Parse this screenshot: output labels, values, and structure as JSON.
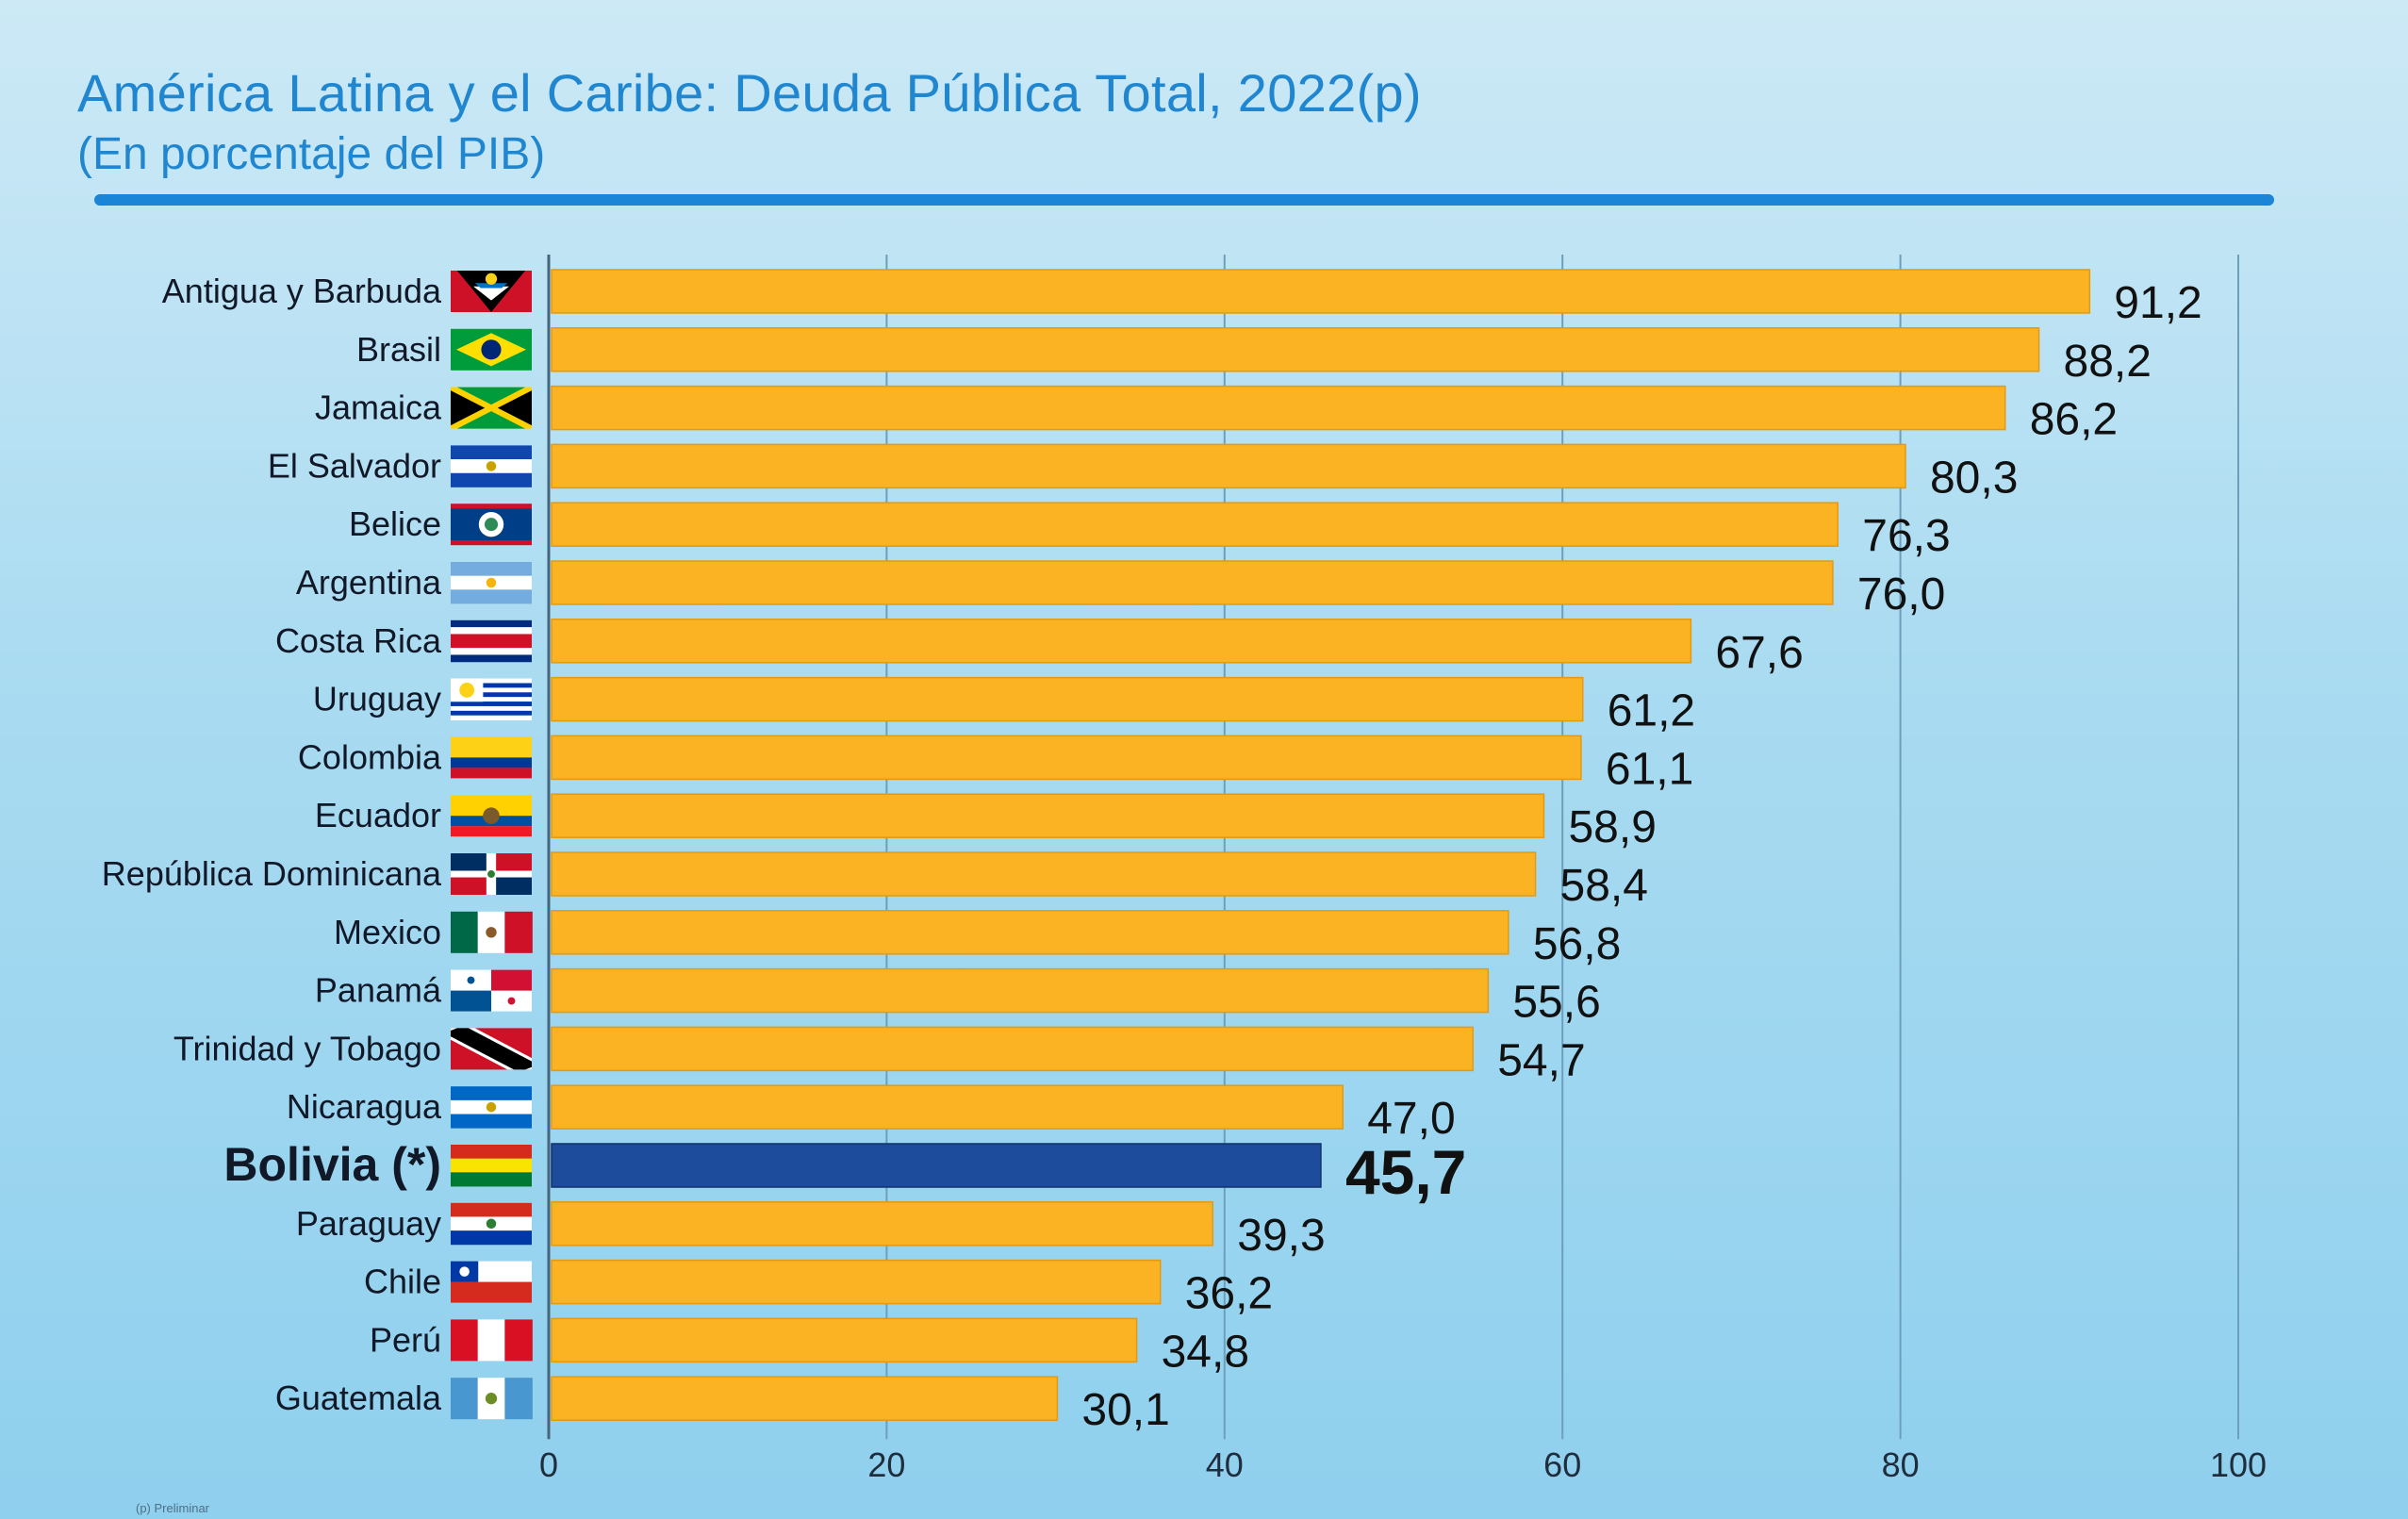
{
  "chart_data": {
    "type": "bar",
    "orientation": "horizontal",
    "title": "América Latina y el Caribe: Deuda Pública Total, 2022(p)",
    "subtitle": "(En porcentaje del PIB)",
    "xlabel": "",
    "ylabel": "",
    "xlim": [
      0,
      100
    ],
    "ticks": [
      0,
      20,
      40,
      60,
      80,
      100
    ],
    "highlight": "Bolivia (*)",
    "bar_color": "#fbb324",
    "highlight_color": "#1e4c9c",
    "categories": [
      "Antigua y Barbuda",
      "Brasil",
      "Jamaica",
      "El Salvador",
      "Belice",
      "Argentina",
      "Costa Rica",
      "Uruguay",
      "Colombia",
      "Ecuador",
      "República Dominicana",
      "Mexico",
      "Panamá",
      "Trinidad y Tobago",
      "Nicaragua",
      "Bolivia (*)",
      "Paraguay",
      "Chile",
      "Perú",
      "Guatemala"
    ],
    "values": [
      91.2,
      88.2,
      86.2,
      80.3,
      76.3,
      76.0,
      67.6,
      61.2,
      61.1,
      58.9,
      58.4,
      56.8,
      55.6,
      54.7,
      47.0,
      45.7,
      39.3,
      36.2,
      34.8,
      30.1
    ],
    "value_labels": [
      "91,2",
      "88,2",
      "86,2",
      "80,3",
      "76,3",
      "76,0",
      "67,6",
      "61,2",
      "61,1",
      "58,9",
      "58,4",
      "56,8",
      "55,6",
      "54,7",
      "47,0",
      "45,7",
      "39,3",
      "36,2",
      "34,8",
      "30,1"
    ],
    "flags": [
      "antigua-flag-icon",
      "brazil-flag-icon",
      "jamaica-flag-icon",
      "el-salvador-flag-icon",
      "belize-flag-icon",
      "argentina-flag-icon",
      "costa-rica-flag-icon",
      "uruguay-flag-icon",
      "colombia-flag-icon",
      "ecuador-flag-icon",
      "dominican-republic-flag-icon",
      "mexico-flag-icon",
      "panama-flag-icon",
      "trinidad-tobago-flag-icon",
      "nicaragua-flag-icon",
      "bolivia-flag-icon",
      "paraguay-flag-icon",
      "chile-flag-icon",
      "peru-flag-icon",
      "guatemala-flag-icon"
    ]
  },
  "footnote": "(p) Preliminar"
}
